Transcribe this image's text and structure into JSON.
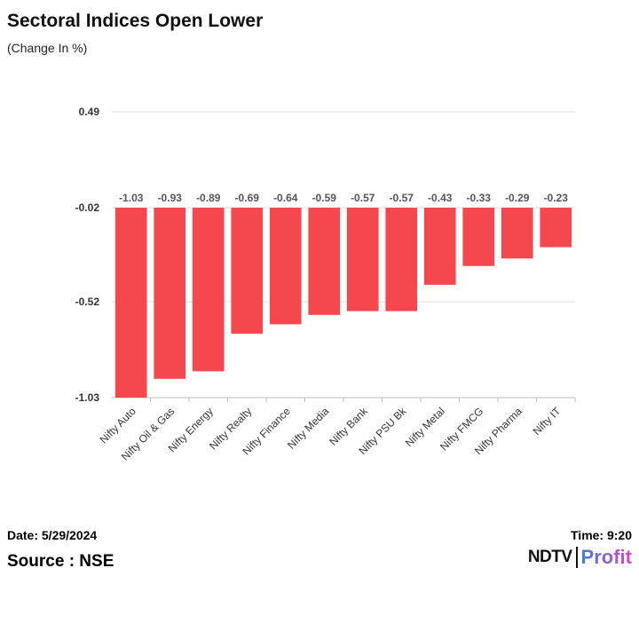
{
  "chart_data": {
    "type": "bar",
    "title": "Sectoral Indices Open Lower",
    "subtitle": "(Change In %)",
    "xlabel": "",
    "ylabel": "",
    "categories": [
      "Nifty Auto",
      "Nifty Oil & Gas",
      "Nifty Energy",
      "Nifty Realty",
      "Nifty Finance",
      "Nifty Media",
      "Nifty Bank",
      "Nifty PSU Bk",
      "Nifty Metal",
      "Nifty FMCG",
      "Nifty Pharma",
      "Nifty IT"
    ],
    "values": [
      -1.03,
      -0.93,
      -0.89,
      -0.69,
      -0.64,
      -0.59,
      -0.57,
      -0.57,
      -0.43,
      -0.33,
      -0.29,
      -0.23
    ],
    "value_labels": [
      "-1.03",
      "-0.93",
      "-0.89",
      "-0.69",
      "-0.64",
      "-0.59",
      "-0.57",
      "-0.57",
      "-0.43",
      "-0.33",
      "-0.29",
      "-0.23"
    ],
    "yticks": [
      0.49,
      -0.02,
      -0.52,
      -1.03
    ],
    "ytick_labels": [
      "0.49",
      "-0.02",
      "-0.52",
      "-1.03"
    ],
    "ylim": [
      -1.03,
      0.49
    ],
    "baseline": -0.02,
    "grid": true,
    "bar_color": "#f5474e"
  },
  "footer": {
    "date": "Date: 5/29/2024",
    "time": "Time: 9:20",
    "source": "Source : NSE"
  },
  "brand": {
    "ndtv": "NDTV",
    "profit": "Profit"
  },
  "colors": {
    "grid": "#e0e0e0",
    "axis": "#bdbdbd",
    "text": "#333333",
    "profit_gradient_start": "#3f7fe0",
    "profit_gradient_end": "#d845c8"
  }
}
